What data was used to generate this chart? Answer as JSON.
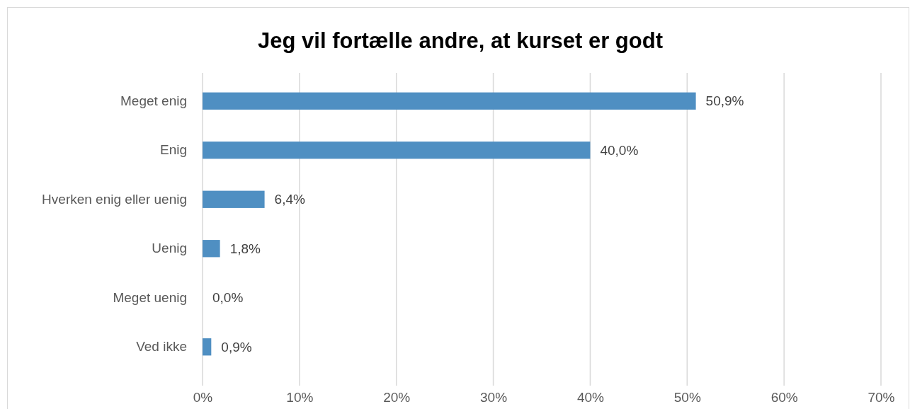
{
  "chart_data": {
    "type": "bar",
    "orientation": "horizontal",
    "title": "Jeg vil fortælle andre, at kurset er godt",
    "categories": [
      "Meget enig",
      "Enig",
      "Hverken enig eller uenig",
      "Uenig",
      "Meget uenig",
      "Ved ikke"
    ],
    "values": [
      50.9,
      40.0,
      6.4,
      1.8,
      0.0,
      0.9
    ],
    "value_labels": [
      "50,9%",
      "40,0%",
      "6,4%",
      "1,8%",
      "0,0%",
      "0,9%"
    ],
    "color": "#4f8fc2",
    "xlim": [
      0,
      70
    ],
    "xticks": [
      {
        "value": 0,
        "label": "0%"
      },
      {
        "value": 10,
        "label": "10%"
      },
      {
        "value": 20,
        "label": "20%"
      },
      {
        "value": 30,
        "label": "30%"
      },
      {
        "value": 40,
        "label": "40%"
      },
      {
        "value": 50,
        "label": "50%"
      },
      {
        "value": 60,
        "label": "60%"
      },
      {
        "value": 70,
        "label": "70%"
      }
    ],
    "grid": "x"
  }
}
